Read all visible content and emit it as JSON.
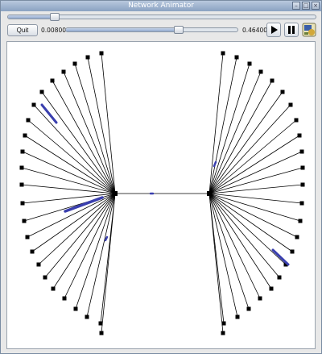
{
  "window": {
    "title": "Network Animator"
  },
  "toolbar": {
    "quit_label": "Quit",
    "rate_min": "0.008000",
    "rate_max": "0.464000",
    "play_icon": "play-icon",
    "pause_icon": "pause-icon",
    "logo_icon": "app-logo-icon"
  },
  "timeline": {
    "position": 0.15
  },
  "rate_slider": {
    "position": 0.65
  },
  "colors": {
    "node": "#000000",
    "link": "#000000",
    "packet": "#3a3fae"
  }
}
